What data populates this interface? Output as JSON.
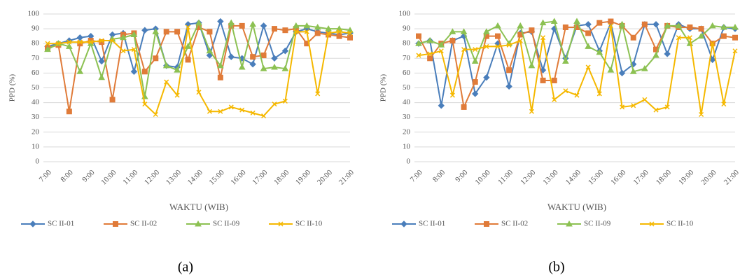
{
  "chart_data": [
    {
      "type": "line",
      "y_label": "PPD (%)",
      "x_label": "WAKTU (WIB)",
      "caption": "(a)",
      "categories": [
        "7:00",
        null,
        "8:00",
        null,
        "9:00",
        null,
        "10:00",
        null,
        "11:00",
        null,
        "12:00",
        null,
        "13:00",
        null,
        "14:00",
        null,
        "15:00",
        null,
        "16:00",
        null,
        "17:00",
        null,
        "18:00",
        null,
        "19:00",
        null,
        "20:00",
        null,
        "21:00"
      ],
      "ylim": [
        0,
        100
      ],
      "yticks": [
        0,
        10,
        20,
        30,
        40,
        50,
        60,
        70,
        80,
        90,
        100
      ],
      "grid": true,
      "series": [
        {
          "name": "SC II-01",
          "color": "#4a7ebb",
          "marker": "diamond",
          "values": [
            78,
            80,
            82,
            84,
            85,
            68,
            86,
            87,
            61,
            89,
            90,
            65,
            64,
            93,
            94,
            72,
            95,
            71,
            70,
            66,
            92,
            70,
            75,
            88,
            90,
            88,
            87,
            86,
            87
          ]
        },
        {
          "name": "SC II-02",
          "color": "#e07b39",
          "marker": "square",
          "values": [
            77,
            79,
            34,
            80,
            82,
            81,
            42,
            86,
            87,
            61,
            70,
            88,
            88,
            69,
            91,
            88,
            57,
            92,
            92,
            71,
            72,
            90,
            89,
            90,
            80,
            87,
            86,
            85,
            84
          ]
        },
        {
          "name": "SC II-09",
          "color": "#8cc152",
          "marker": "triangle",
          "values": [
            76,
            80,
            78,
            61,
            80,
            57,
            83,
            84,
            86,
            44,
            88,
            65,
            62,
            78,
            94,
            75,
            65,
            94,
            64,
            93,
            63,
            64,
            63,
            92,
            92,
            91,
            90,
            90,
            89
          ]
        },
        {
          "name": "SC II-10",
          "color": "#f5b800",
          "marker": "x",
          "values": [
            80,
            80,
            81,
            81,
            81,
            82,
            82,
            75,
            76,
            39,
            32,
            54,
            45,
            91,
            47,
            34,
            34,
            37,
            35,
            33,
            31,
            39,
            41,
            88,
            88,
            46,
            87,
            88,
            87
          ]
        }
      ]
    },
    {
      "type": "line",
      "y_label": "PPD (%)",
      "x_label": "WAKTU (WIB)",
      "caption": "(b)",
      "categories": [
        "7:00",
        null,
        "8:00",
        null,
        "9:00",
        null,
        "10:00",
        null,
        "11:00",
        null,
        "12:00",
        null,
        "13:00",
        null,
        "14:00",
        null,
        "15:00",
        null,
        "16:00",
        null,
        "17:00",
        null,
        "18:00",
        null,
        "19:00",
        null,
        "20:00",
        null,
        "21:00"
      ],
      "ylim": [
        0,
        100
      ],
      "yticks": [
        0,
        10,
        20,
        30,
        40,
        50,
        60,
        70,
        80,
        90,
        100
      ],
      "grid": true,
      "series": [
        {
          "name": "SC II-01",
          "color": "#4a7ebb",
          "marker": "diamond",
          "values": [
            80,
            82,
            38,
            82,
            85,
            46,
            57,
            80,
            51,
            87,
            88,
            62,
            90,
            70,
            92,
            93,
            75,
            94,
            60,
            66,
            93,
            93,
            73,
            93,
            90,
            90,
            69,
            91,
            90
          ]
        },
        {
          "name": "SC II-02",
          "color": "#e07b39",
          "marker": "square",
          "values": [
            85,
            70,
            80,
            82,
            37,
            54,
            85,
            85,
            62,
            86,
            89,
            55,
            55,
            91,
            91,
            87,
            94,
            95,
            92,
            84,
            93,
            76,
            92,
            91,
            91,
            90,
            80,
            85,
            84
          ]
        },
        {
          "name": "SC II-09",
          "color": "#8cc152",
          "marker": "triangle",
          "values": [
            80,
            82,
            79,
            88,
            88,
            68,
            88,
            92,
            80,
            92,
            65,
            94,
            95,
            68,
            95,
            78,
            74,
            62,
            93,
            61,
            63,
            72,
            92,
            92,
            80,
            85,
            92,
            91,
            91
          ]
        },
        {
          "name": "SC II-10",
          "color": "#f5b800",
          "marker": "x",
          "values": [
            72,
            73,
            75,
            45,
            76,
            76,
            78,
            78,
            79,
            82,
            34,
            84,
            42,
            48,
            45,
            64,
            46,
            92,
            37,
            38,
            42,
            35,
            37,
            84,
            84,
            32,
            80,
            39,
            75
          ]
        }
      ]
    }
  ]
}
